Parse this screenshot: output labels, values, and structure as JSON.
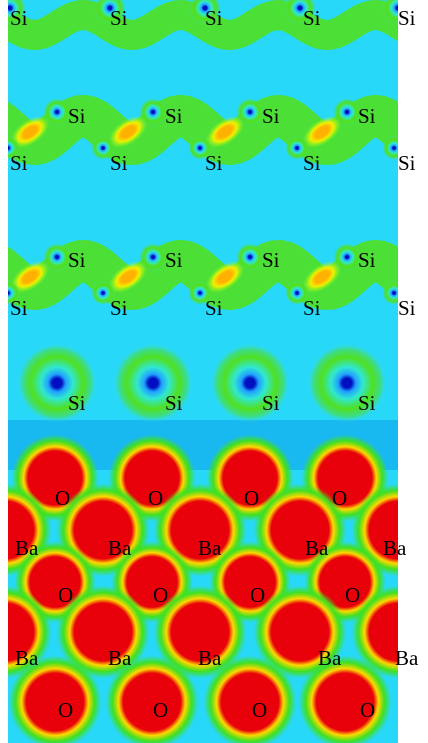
{
  "rows": [
    [
      "Si",
      "Si",
      "Si",
      "Si",
      "Si"
    ],
    [
      "Si",
      "Si",
      "Si",
      "Si"
    ],
    [
      "Si",
      "Si",
      "Si",
      "Si",
      "Si"
    ],
    [
      "Si",
      "Si",
      "Si",
      "Si"
    ],
    [
      "Si",
      "Si",
      "Si",
      "Si",
      "Si"
    ],
    [
      "Si",
      "Si",
      "Si",
      "Si"
    ],
    [
      "O",
      "O",
      "O",
      "O"
    ],
    [
      "Ba",
      "Ba",
      "Ba",
      "Ba",
      "Ba"
    ],
    [
      "O",
      "O",
      "O",
      "O"
    ],
    [
      "Ba",
      "Ba",
      "Ba",
      "Ba",
      "Ba"
    ],
    [
      "O",
      "O",
      "O",
      "O"
    ]
  ]
}
